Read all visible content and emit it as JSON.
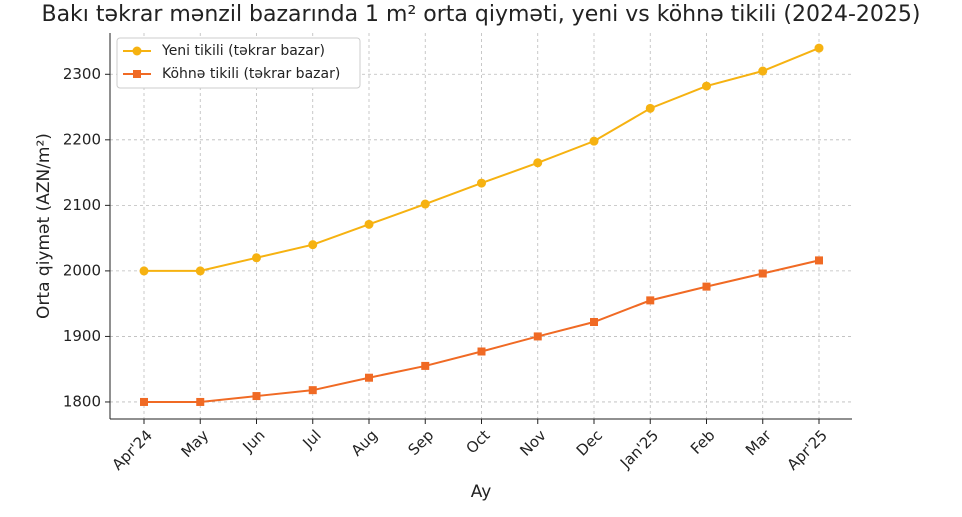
{
  "chart_data": {
    "type": "line",
    "title": "Bakı təkrar mənzil bazarında 1 m² orta qiyməti, yeni vs köhnə tikili (2024-2025)",
    "xlabel": "Ay",
    "ylabel": "Orta qiymət (AZN/m²)",
    "categories": [
      "Apr'24",
      "May",
      "Jun",
      "Jul",
      "Aug",
      "Sep",
      "Oct",
      "Nov",
      "Dec",
      "Jan'25",
      "Feb",
      "Mar",
      "Apr'25"
    ],
    "series": [
      {
        "name": "Yeni tikili (təkrar bazar)",
        "color": "#f6b211",
        "marker": "circle",
        "values": [
          2000,
          2000,
          2020,
          2040,
          2071,
          2102,
          2134,
          2165,
          2198,
          2248,
          2282,
          2305,
          2340
        ]
      },
      {
        "name": "Köhnə tikili (təkrar bazar)",
        "color": "#f06a24",
        "marker": "square",
        "values": [
          1800,
          1800,
          1809,
          1818,
          1837,
          1855,
          1877,
          1900,
          1922,
          1955,
          1976,
          1996,
          2016
        ]
      }
    ],
    "ylim": [
      1774,
      2363
    ],
    "yticks": [
      1800,
      1900,
      2000,
      2100,
      2200,
      2300
    ],
    "grid": true,
    "legend": "upper left"
  }
}
